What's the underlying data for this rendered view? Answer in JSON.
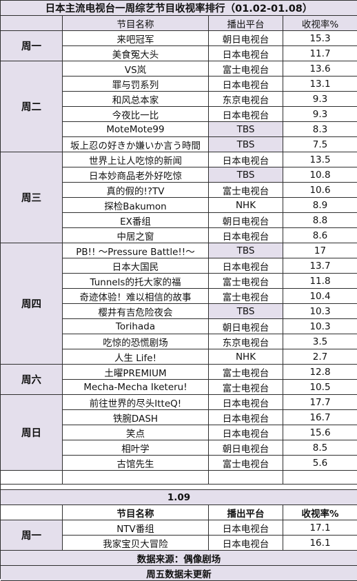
{
  "title": "日本主流电视台一周综艺节目收视率排行（01.02-01.08）",
  "headers": [
    "节目名称",
    "播出平台",
    "收视率%"
  ],
  "groups": [
    {
      "day": "周一",
      "rows": [
        {
          "name": "来吧冠军",
          "platform": "朝日电视台",
          "rating": "15.3"
        },
        {
          "name": "美食冤大头",
          "platform": "日本电视台",
          "rating": "11.7"
        }
      ]
    },
    {
      "day": "周二",
      "rows": [
        {
          "name": "VS岚",
          "platform": "富士电视台",
          "rating": "13.6"
        },
        {
          "name": "罪与罚系列",
          "platform": "日本电视台",
          "rating": "13.1"
        },
        {
          "name": "和风总本家",
          "platform": "东京电视台",
          "rating": "9.3"
        },
        {
          "name": "今夜比一比",
          "platform": "日本电视台",
          "rating": "9.3"
        },
        {
          "name": "MoteMote99",
          "platform": "TBS",
          "rating": "8.3"
        },
        {
          "name": "坂上忍の好きか嫌いか言う時間",
          "platform": "TBS",
          "rating": "7.5"
        }
      ]
    },
    {
      "day": "周三",
      "rows": [
        {
          "name": "世界上让人吃惊的新闻",
          "platform": "日本电视台",
          "rating": "13.5"
        },
        {
          "name": "日本妙商品老外好吃惊",
          "platform": "TBS",
          "rating": "10.8"
        },
        {
          "name": "真的假的!?TV",
          "platform": "富士电视台",
          "rating": "10.6"
        },
        {
          "name": "探检Bakumon",
          "platform": "NHK",
          "rating": "8.9"
        },
        {
          "name": "EX番组",
          "platform": "朝日电视台",
          "rating": "8.8"
        },
        {
          "name": "中居之窗",
          "platform": "日本电视台",
          "rating": "8.6"
        }
      ]
    },
    {
      "day": "周四",
      "rows": [
        {
          "name": "PB!! ～Pressure Battle!!～",
          "platform": "TBS",
          "rating": "17"
        },
        {
          "name": "日本大国民",
          "platform": "日本电视台",
          "rating": "13.7"
        },
        {
          "name": "Tunnels的托大家的福",
          "platform": "富士电视台",
          "rating": "11.8"
        },
        {
          "name": "奇迹体验！难以相信的故事",
          "platform": "富士电视台",
          "rating": "10.4"
        },
        {
          "name": "樱井有吉危险夜会",
          "platform": "TBS",
          "rating": "10.3"
        },
        {
          "name": "Torihada",
          "platform": "朝日电视台",
          "rating": "10.3"
        },
        {
          "name": "吃惊的恐慌剧场",
          "platform": "东京电视台",
          "rating": "3.5"
        },
        {
          "name": "人生 Life!",
          "platform": "NHK",
          "rating": "2.7"
        }
      ]
    },
    {
      "day": "周六",
      "rows": [
        {
          "name": "土曜PREMIUM",
          "platform": "富士电视台",
          "rating": "12.8"
        },
        {
          "name": "Mecha-Mecha Iketeru!",
          "platform": "富士电视台",
          "rating": "10.5"
        }
      ]
    },
    {
      "day": "周日",
      "rows": [
        {
          "name": "前往世界的尽头ItteQ!",
          "platform": "日本电视台",
          "rating": "17.7"
        },
        {
          "name": "铁腕DASH",
          "platform": "日本电视台",
          "rating": "16.7"
        },
        {
          "name": "笑点",
          "platform": "日本电视台",
          "rating": "15.6"
        },
        {
          "name": "相叶学",
          "platform": "朝日电视台",
          "rating": "8.5"
        },
        {
          "name": "古馆先生",
          "platform": "富士电视台",
          "rating": "5.6"
        }
      ]
    }
  ],
  "extra": {
    "title": "1.09",
    "headers": [
      "节目名称",
      "播出平台",
      "收视率%"
    ],
    "day": "周一",
    "rows": [
      {
        "name": "NTV番组",
        "platform": "日本电视台",
        "rating": "17.1"
      },
      {
        "name": "我家宝贝大冒险",
        "platform": "日本电视台",
        "rating": "16.1"
      }
    ]
  },
  "footer": [
    "数据来源：偶像剧场",
    "周五数据未更新"
  ]
}
